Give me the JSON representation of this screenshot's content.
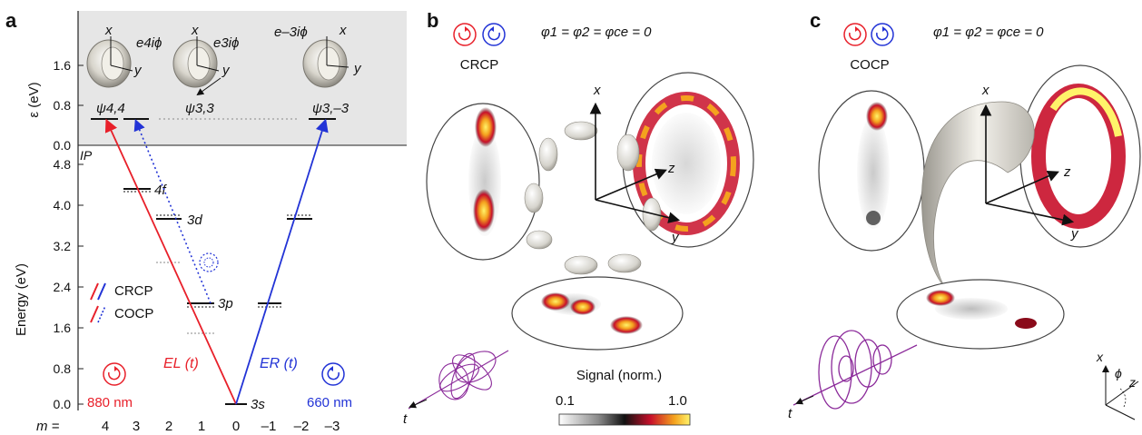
{
  "panels": {
    "a": {
      "letter": "a"
    },
    "b": {
      "letter": "b"
    },
    "c": {
      "letter": "c"
    }
  },
  "panel_a": {
    "top_ylabel": "ε (eV)",
    "bottom_ylabel": "Energy (eV)",
    "top_ticks": [
      "1.6",
      "0.8",
      "0.0"
    ],
    "bottom_ticks": [
      "4.8",
      "4.0",
      "3.2",
      "2.4",
      "1.6",
      "0.8",
      "0.0"
    ],
    "ip_label": "IP",
    "m_prefix": "m =",
    "m_ticks": [
      "4",
      "3",
      "2",
      "1",
      "0",
      "–1",
      "–2",
      "–3"
    ],
    "states": {
      "psi44": "ψ4,4",
      "psi33": "ψ3,3",
      "psi3m3": "ψ3,–3"
    },
    "phases": {
      "p1": "e4iϕ",
      "p2": "e3iϕ",
      "p3": "e–3iϕ"
    },
    "axis_x": "x",
    "axis_y": "y",
    "levels": {
      "s": "3s",
      "p": "3p",
      "d": "3d",
      "f": "4f"
    },
    "legend": {
      "crcp": "CRCP",
      "cocp": "COCP"
    },
    "fields": {
      "left": "EL (t)",
      "right": "ER (t)"
    },
    "wavelengths": {
      "left": "880 nm",
      "right": "660 nm"
    },
    "colors": {
      "red": "#e8202a",
      "blue": "#2233d6",
      "band": "#e6e6e6"
    }
  },
  "panel_b": {
    "mode": "CRCP",
    "phase_eq": "φ1 = φ2 = φce = 0",
    "axes": {
      "x": "x",
      "y": "y",
      "z": "z",
      "t": "t"
    },
    "colorbar": {
      "title": "Signal (norm.)",
      "min": "0.1",
      "max": "1.0"
    }
  },
  "panel_c": {
    "mode": "COCP",
    "phase_eq": "φ1 = φ2 = φce = 0",
    "axes": {
      "x": "x",
      "y": "y",
      "z": "z",
      "t": "t",
      "phi": "ϕ"
    }
  }
}
